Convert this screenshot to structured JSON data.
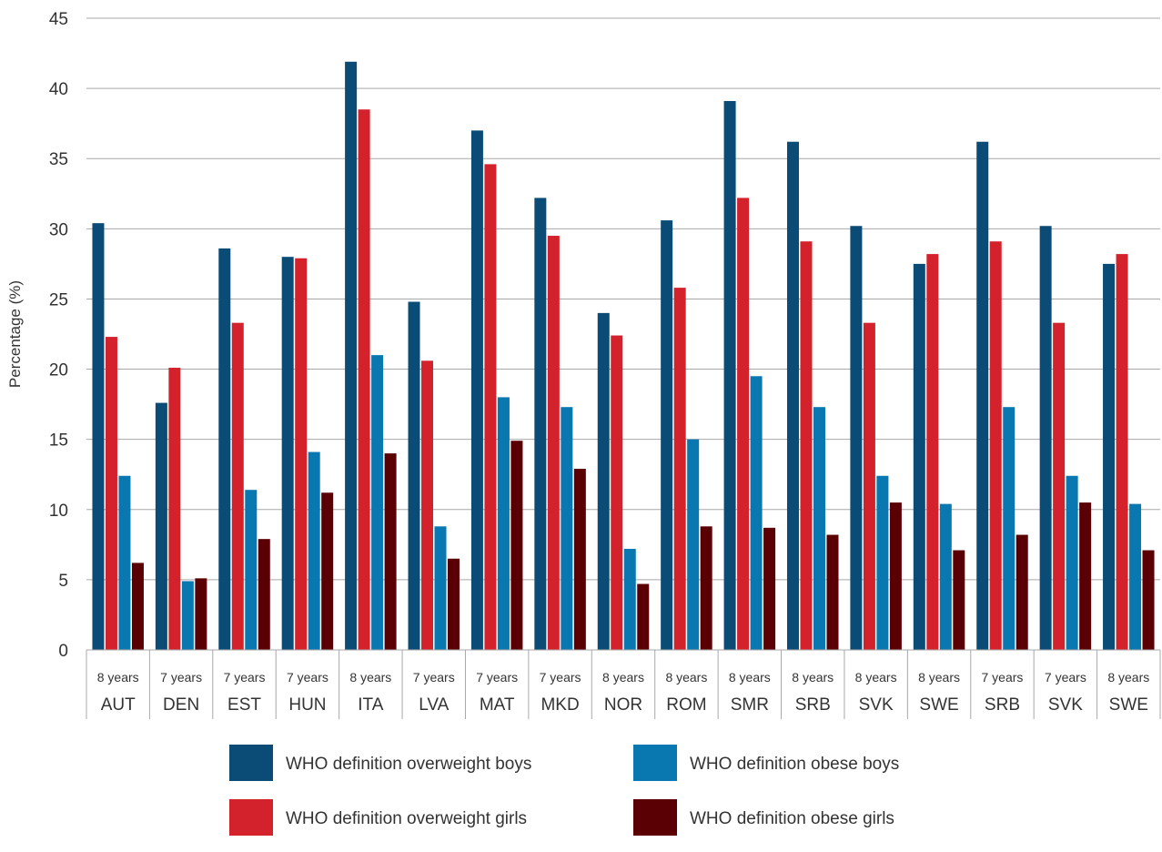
{
  "chart_data": {
    "type": "bar",
    "ylabel": "Percentage (%)",
    "ylim": [
      0,
      45
    ],
    "yticks": [
      "0",
      "5",
      "10",
      "15",
      "20",
      "25",
      "30",
      "35",
      "40",
      "45"
    ],
    "grid": true,
    "legend_position": "bottom",
    "categories": [
      {
        "age": "8 years",
        "country": "AUT"
      },
      {
        "age": "7 years",
        "country": "DEN"
      },
      {
        "age": "7 years",
        "country": "EST"
      },
      {
        "age": "7 years",
        "country": "HUN"
      },
      {
        "age": "8 years",
        "country": "ITA"
      },
      {
        "age": "7 years",
        "country": "LVA"
      },
      {
        "age": "7 years",
        "country": "MAT"
      },
      {
        "age": "7 years",
        "country": "MKD"
      },
      {
        "age": "8 years",
        "country": "NOR"
      },
      {
        "age": "8 years",
        "country": "ROM"
      },
      {
        "age": "8 years",
        "country": "SMR"
      },
      {
        "age": "8 years",
        "country": "SRB"
      },
      {
        "age": "8 years",
        "country": "SVK"
      },
      {
        "age": "8 years",
        "country": "SWE"
      },
      {
        "age": "7 years",
        "country": "SRB"
      },
      {
        "age": "7 years",
        "country": "SVK"
      },
      {
        "age": "8 years",
        "country": "SWE"
      }
    ],
    "series": [
      {
        "name": "WHO definition overweight boys",
        "color": "#0b4c77",
        "values": [
          30.4,
          17.6,
          28.6,
          28.0,
          41.9,
          24.8,
          37.0,
          32.2,
          24.0,
          30.6,
          39.1,
          36.2,
          30.2,
          27.5,
          36.2,
          30.2,
          27.5
        ]
      },
      {
        "name": "WHO definition overweight girls",
        "color": "#d3222b",
        "values": [
          22.3,
          20.1,
          23.3,
          27.9,
          38.5,
          20.6,
          34.6,
          29.5,
          22.4,
          25.8,
          32.2,
          29.1,
          23.3,
          28.2,
          29.1,
          23.3,
          28.2
        ]
      },
      {
        "name": "WHO definition obese boys",
        "color": "#0a78b0",
        "values": [
          12.4,
          4.9,
          11.4,
          14.1,
          21.0,
          8.8,
          18.0,
          17.3,
          7.2,
          15.0,
          19.5,
          17.3,
          12.4,
          10.4,
          17.3,
          12.4,
          10.4
        ]
      },
      {
        "name": "WHO definition obese girls",
        "color": "#5a0005",
        "values": [
          6.2,
          5.1,
          7.9,
          11.2,
          14.0,
          6.5,
          14.9,
          12.9,
          4.7,
          8.8,
          8.7,
          8.2,
          10.5,
          7.1,
          8.2,
          10.5,
          7.1
        ]
      }
    ]
  }
}
